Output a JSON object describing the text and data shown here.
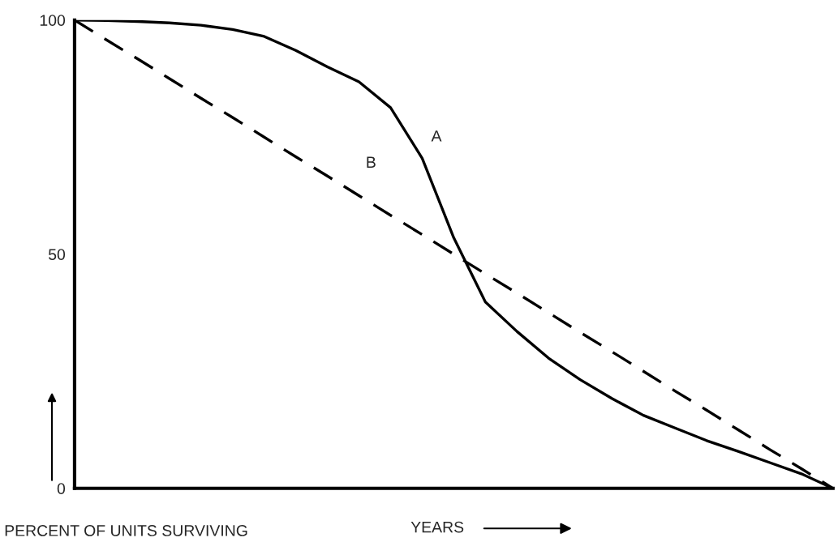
{
  "chart_data": {
    "type": "line",
    "xlabel": "YEARS",
    "ylabel": "PERCENT OF UNITS SURVIVING",
    "categories": [
      null,
      null,
      null,
      null,
      null,
      null,
      null,
      null,
      null,
      null,
      null,
      null,
      null,
      null,
      null,
      null,
      null,
      null,
      null,
      null,
      null,
      null,
      null,
      null,
      null
    ],
    "series": [
      {
        "name": "A",
        "color": "#000000",
        "line_style": "solid",
        "values": [
          100,
          99.9,
          99.7,
          99.4,
          98.9,
          98.0,
          96.5,
          93.5,
          90.0,
          86.8,
          81.3,
          70.5,
          53.5,
          39.8,
          33.5,
          27.8,
          23.2,
          19.2,
          15.6,
          12.9,
          10.2,
          7.9,
          5.5,
          3.1,
          0
        ]
      },
      {
        "name": "B",
        "color": "#000000",
        "line_style": "dashed",
        "values": [
          100,
          95.8,
          91.7,
          87.5,
          83.3,
          79.2,
          75,
          70.8,
          66.7,
          62.5,
          58.3,
          54.2,
          50,
          45.8,
          41.7,
          37.5,
          33.3,
          29.2,
          25,
          20.8,
          16.7,
          12.5,
          8.3,
          4.2,
          0
        ]
      }
    ],
    "ylim": [
      0,
      100
    ],
    "yticks": [
      0,
      50,
      100
    ],
    "grid": false,
    "legend": false,
    "tick_labels": "y",
    "marker": "none"
  }
}
